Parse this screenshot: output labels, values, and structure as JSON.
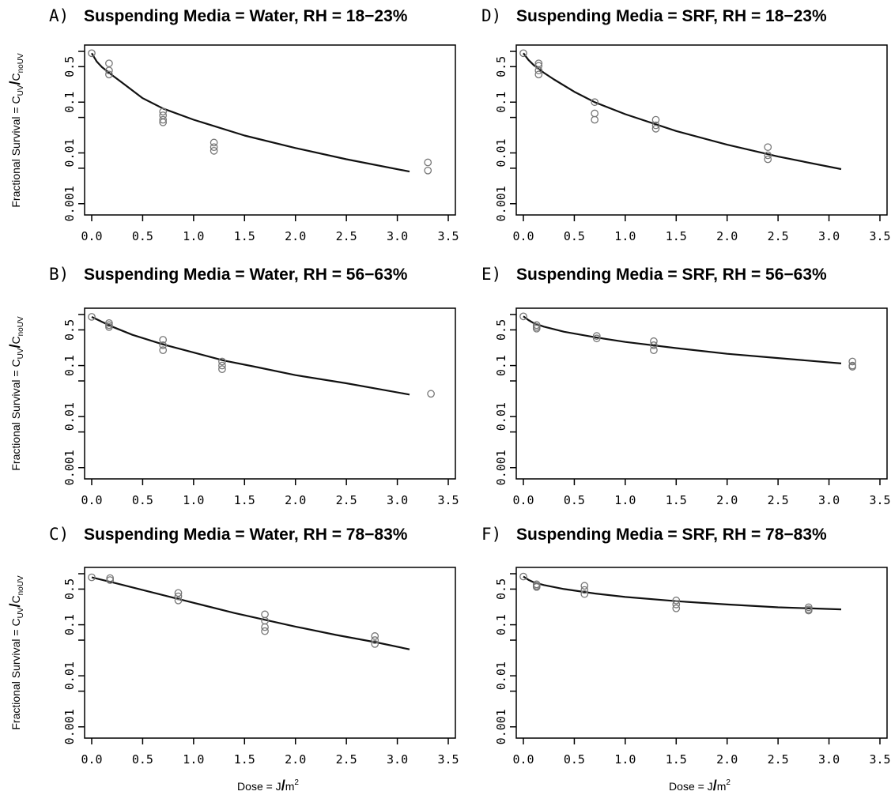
{
  "figure": {
    "ylabel_main": "Fractional Survival = C",
    "ylabel_sub1": "UV",
    "ylabel_slash": "/",
    "ylabel_c2": "C",
    "ylabel_sub2": "noUV",
    "xlabel_main": "Dose = J",
    "xlabel_slash": "/",
    "xlabel_unit": "m",
    "xlabel_sup": "2"
  },
  "chart_data": [
    {
      "type": "scatter",
      "panel_letter": "A)",
      "title": "Suspending Media = Water, RH = 18−23%",
      "xlim": [
        0,
        3.5
      ],
      "ylim": [
        0.0008,
        1.0
      ],
      "log_y": true,
      "xticks": [
        "0.0",
        "0.5",
        "1.0",
        "1.5",
        "2.0",
        "2.5",
        "3.0",
        "3.5"
      ],
      "yticks": [
        "0.001",
        "0.01",
        "0.1",
        "0.5"
      ],
      "points": [
        [
          0,
          0.92
        ],
        [
          0.17,
          0.58
        ],
        [
          0.17,
          0.42
        ],
        [
          0.17,
          0.35
        ],
        [
          0.7,
          0.065
        ],
        [
          0.7,
          0.055
        ],
        [
          0.7,
          0.045
        ],
        [
          0.7,
          0.04
        ],
        [
          1.2,
          0.016
        ],
        [
          1.2,
          0.013
        ],
        [
          1.2,
          0.011
        ],
        [
          3.3,
          0.0065
        ],
        [
          3.3,
          0.0045
        ]
      ],
      "fit": [
        [
          0,
          0.92
        ],
        [
          0.05,
          0.63
        ],
        [
          0.1,
          0.49
        ],
        [
          0.2,
          0.34
        ],
        [
          0.3,
          0.24
        ],
        [
          0.5,
          0.12
        ],
        [
          0.7,
          0.075
        ],
        [
          1.0,
          0.045
        ],
        [
          1.5,
          0.022
        ],
        [
          2.0,
          0.0125
        ],
        [
          2.5,
          0.0075
        ],
        [
          3.12,
          0.0043
        ]
      ]
    },
    {
      "type": "scatter",
      "panel_letter": "B)",
      "title": "Suspending Media = Water, RH = 56−63%",
      "xlim": [
        0,
        3.5
      ],
      "ylim": [
        0.0008,
        1.0
      ],
      "log_y": true,
      "xticks": [
        "0.0",
        "0.5",
        "1.0",
        "1.5",
        "2.0",
        "2.5",
        "3.0",
        "3.5"
      ],
      "yticks": [
        "0.001",
        "0.01",
        "0.1",
        "0.5"
      ],
      "points": [
        [
          0,
          0.9
        ],
        [
          0.17,
          0.68
        ],
        [
          0.17,
          0.62
        ],
        [
          0.17,
          0.57
        ],
        [
          0.7,
          0.32
        ],
        [
          0.7,
          0.25
        ],
        [
          0.7,
          0.2
        ],
        [
          1.28,
          0.12
        ],
        [
          1.28,
          0.1
        ],
        [
          1.28,
          0.085
        ],
        [
          3.33,
          0.028
        ]
      ],
      "fit": [
        [
          0,
          0.9
        ],
        [
          0.1,
          0.72
        ],
        [
          0.2,
          0.58
        ],
        [
          0.4,
          0.4
        ],
        [
          0.7,
          0.26
        ],
        [
          1.0,
          0.18
        ],
        [
          1.3,
          0.125
        ],
        [
          1.6,
          0.095
        ],
        [
          2.0,
          0.065
        ],
        [
          2.5,
          0.045
        ],
        [
          3.12,
          0.027
        ]
      ]
    },
    {
      "type": "scatter",
      "panel_letter": "C)",
      "title": "Suspending Media = Water, RH = 78−83%",
      "xlim": [
        0,
        3.5
      ],
      "ylim": [
        0.0008,
        1.0
      ],
      "log_y": true,
      "xticks": [
        "0.0",
        "0.5",
        "1.0",
        "1.5",
        "2.0",
        "2.5",
        "3.0",
        "3.5"
      ],
      "yticks": [
        "0.001",
        "0.01",
        "0.1",
        "0.5"
      ],
      "points": [
        [
          0,
          0.85
        ],
        [
          0.18,
          0.82
        ],
        [
          0.18,
          0.75
        ],
        [
          0.85,
          0.42
        ],
        [
          0.85,
          0.36
        ],
        [
          0.85,
          0.3
        ],
        [
          1.7,
          0.16
        ],
        [
          1.7,
          0.12
        ],
        [
          1.7,
          0.09
        ],
        [
          1.7,
          0.075
        ],
        [
          2.78,
          0.06
        ],
        [
          2.78,
          0.05
        ],
        [
          2.78,
          0.042
        ]
      ],
      "fit": [
        [
          0,
          0.85
        ],
        [
          0.2,
          0.68
        ],
        [
          0.5,
          0.48
        ],
        [
          0.8,
          0.34
        ],
        [
          1.1,
          0.24
        ],
        [
          1.4,
          0.17
        ],
        [
          1.7,
          0.125
        ],
        [
          2.0,
          0.092
        ],
        [
          2.4,
          0.063
        ],
        [
          2.8,
          0.045
        ],
        [
          3.12,
          0.033
        ]
      ]
    },
    {
      "type": "scatter",
      "panel_letter": "D)",
      "title": "Suspending Media = SRF, RH = 18−23%",
      "xlim": [
        0,
        3.5
      ],
      "ylim": [
        0.0008,
        1.0
      ],
      "log_y": true,
      "xticks": [
        "0.0",
        "0.5",
        "1.0",
        "1.5",
        "2.0",
        "2.5",
        "3.0",
        "3.5"
      ],
      "yticks": [
        "0.001",
        "0.01",
        "0.1",
        "0.5"
      ],
      "points": [
        [
          0,
          0.92
        ],
        [
          0.15,
          0.58
        ],
        [
          0.15,
          0.52
        ],
        [
          0.15,
          0.42
        ],
        [
          0.15,
          0.35
        ],
        [
          0.7,
          0.1
        ],
        [
          0.7,
          0.06
        ],
        [
          0.7,
          0.045
        ],
        [
          1.3,
          0.045
        ],
        [
          1.3,
          0.035
        ],
        [
          1.3,
          0.03
        ],
        [
          2.4,
          0.013
        ],
        [
          2.4,
          0.009
        ],
        [
          2.4,
          0.0075
        ]
      ],
      "fit": [
        [
          0,
          0.92
        ],
        [
          0.05,
          0.68
        ],
        [
          0.1,
          0.54
        ],
        [
          0.2,
          0.38
        ],
        [
          0.3,
          0.28
        ],
        [
          0.5,
          0.16
        ],
        [
          0.7,
          0.1
        ],
        [
          1.0,
          0.058
        ],
        [
          1.5,
          0.027
        ],
        [
          2.0,
          0.0145
        ],
        [
          2.5,
          0.0085
        ],
        [
          3.12,
          0.0048
        ]
      ]
    },
    {
      "type": "scatter",
      "panel_letter": "E)",
      "title": "Suspending Media = SRF, RH = 56−63%",
      "xlim": [
        0,
        3.5
      ],
      "ylim": [
        0.0008,
        1.0
      ],
      "log_y": true,
      "xticks": [
        "0.0",
        "0.5",
        "1.0",
        "1.5",
        "2.0",
        "2.5",
        "3.0",
        "3.5"
      ],
      "yticks": [
        "0.001",
        "0.01",
        "0.1",
        "0.5"
      ],
      "points": [
        [
          0,
          0.92
        ],
        [
          0.13,
          0.62
        ],
        [
          0.13,
          0.57
        ],
        [
          0.13,
          0.53
        ],
        [
          0.72,
          0.38
        ],
        [
          0.72,
          0.34
        ],
        [
          1.28,
          0.3
        ],
        [
          1.28,
          0.25
        ],
        [
          1.28,
          0.2
        ],
        [
          3.23,
          0.12
        ],
        [
          3.23,
          0.1
        ],
        [
          3.23,
          0.095
        ]
      ],
      "fit": [
        [
          0,
          0.92
        ],
        [
          0.05,
          0.78
        ],
        [
          0.1,
          0.68
        ],
        [
          0.2,
          0.58
        ],
        [
          0.4,
          0.46
        ],
        [
          0.7,
          0.36
        ],
        [
          1.0,
          0.29
        ],
        [
          1.5,
          0.22
        ],
        [
          2.0,
          0.17
        ],
        [
          2.5,
          0.14
        ],
        [
          3.12,
          0.11
        ]
      ]
    },
    {
      "type": "scatter",
      "panel_letter": "F)",
      "title": "Suspending Media = SRF, RH = 78−83%",
      "xlim": [
        0,
        3.5
      ],
      "ylim": [
        0.0008,
        1.0
      ],
      "log_y": true,
      "xticks": [
        "0.0",
        "0.5",
        "1.0",
        "1.5",
        "2.0",
        "2.5",
        "3.0",
        "3.5"
      ],
      "yticks": [
        "0.001",
        "0.01",
        "0.1",
        "0.5"
      ],
      "points": [
        [
          0,
          0.88
        ],
        [
          0.13,
          0.62
        ],
        [
          0.13,
          0.58
        ],
        [
          0.13,
          0.55
        ],
        [
          0.6,
          0.58
        ],
        [
          0.6,
          0.48
        ],
        [
          0.6,
          0.4
        ],
        [
          1.5,
          0.3
        ],
        [
          1.5,
          0.25
        ],
        [
          1.5,
          0.21
        ],
        [
          2.8,
          0.22
        ],
        [
          2.8,
          0.2
        ],
        [
          2.8,
          0.19
        ]
      ],
      "fit": [
        [
          0,
          0.88
        ],
        [
          0.05,
          0.76
        ],
        [
          0.1,
          0.68
        ],
        [
          0.2,
          0.6
        ],
        [
          0.4,
          0.5
        ],
        [
          0.7,
          0.41
        ],
        [
          1.0,
          0.35
        ],
        [
          1.5,
          0.29
        ],
        [
          2.0,
          0.25
        ],
        [
          2.5,
          0.22
        ],
        [
          3.12,
          0.2
        ]
      ]
    }
  ]
}
